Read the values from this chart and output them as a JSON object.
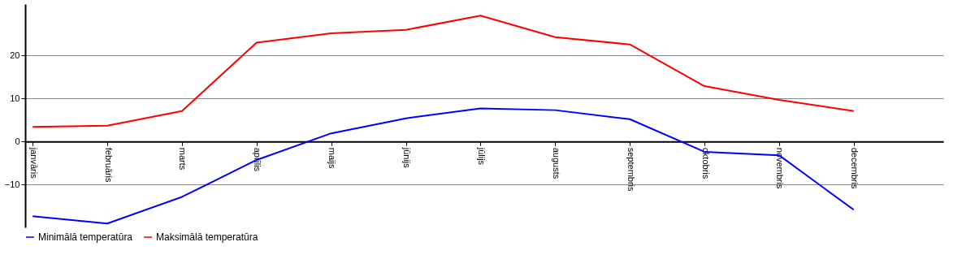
{
  "chart_data": {
    "type": "line",
    "categories": [
      "janvāris",
      "februāris",
      "marts",
      "aprīlis",
      "maijs",
      "jūnijs",
      "jūlijs",
      "augusts",
      "septembris",
      "oktobris",
      "novembris",
      "decembris"
    ],
    "series": [
      {
        "name": "Minimālā temperatūra",
        "color": "#0000ff",
        "values": [
          -17.4,
          -19.1,
          -12.9,
          -4.3,
          1.9,
          5.4,
          7.7,
          7.3,
          5.2,
          -2.4,
          -3.2,
          -15.9
        ]
      },
      {
        "name": "Maksimālā temperatūra",
        "color": "#ff0000",
        "values": [
          3.4,
          3.7,
          7.1,
          23,
          25.2,
          26,
          29.3,
          24.3,
          22.6,
          12.9,
          9.7,
          7.1
        ]
      }
    ],
    "ylim": [
      -20,
      32
    ],
    "yticks": [
      -10,
      0,
      10,
      20
    ],
    "grid": "y",
    "legend": "bottom left",
    "marker": "none",
    "line_style": "solid"
  }
}
